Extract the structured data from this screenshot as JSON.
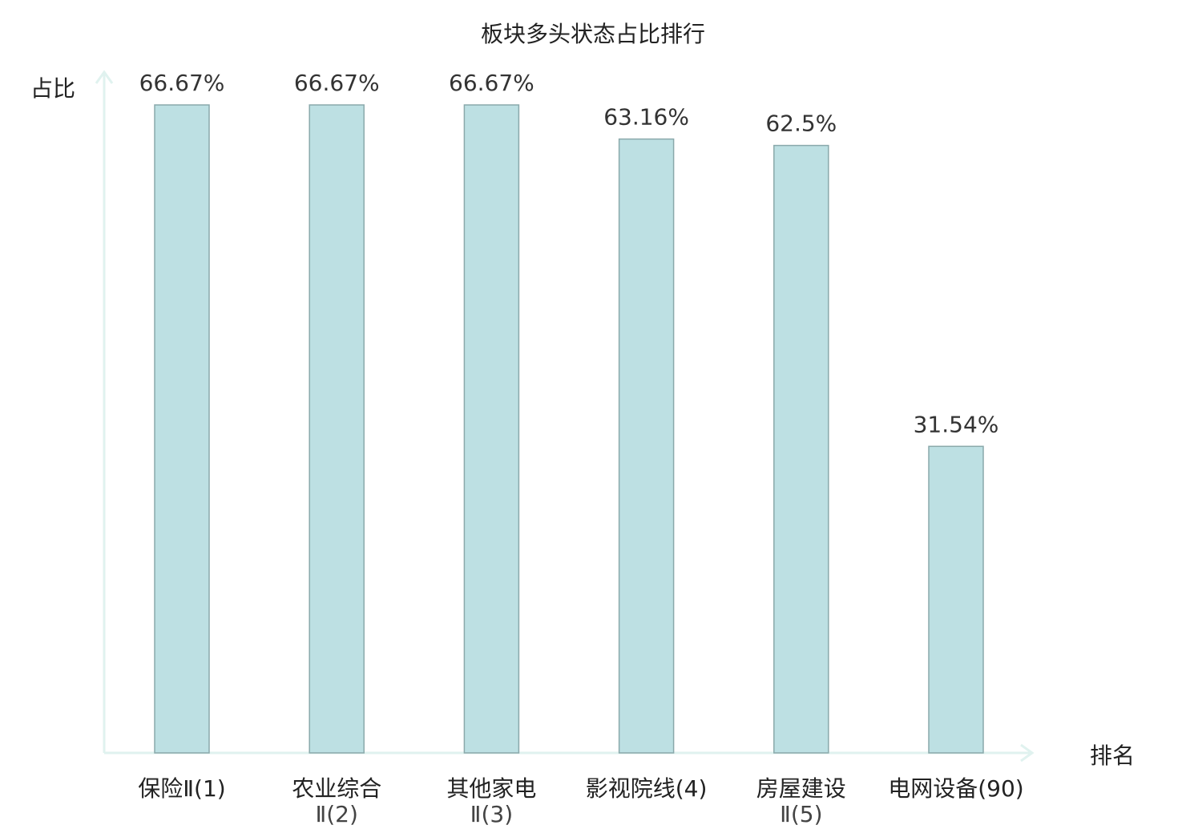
{
  "chart_data": {
    "type": "bar",
    "title": "板块多头状态占比排行",
    "ylabel": "占比",
    "xlabel": "排名",
    "ylim": [
      0,
      70
    ],
    "grid": false,
    "categories": [
      {
        "name": "保险Ⅱ",
        "rank": "(1)",
        "display": "保险Ⅱ(1)",
        "line1": "保险Ⅱ(1)",
        "line2": "",
        "highlight": false
      },
      {
        "name": "农业综合Ⅱ",
        "rank": "(2)",
        "display": "农业综合Ⅱ(2)",
        "line1": "农业综合",
        "line2": "Ⅱ(2)",
        "highlight": false
      },
      {
        "name": "其他家电Ⅱ",
        "rank": "(3)",
        "display": "其他家电Ⅱ(3)",
        "line1": "其他家电",
        "line2": "Ⅱ(3)",
        "highlight": false
      },
      {
        "name": "影视院线",
        "rank": "(4)",
        "display": "影视院线(4)",
        "line1": "影视院线(4)",
        "line2": "",
        "highlight": false
      },
      {
        "name": "房屋建设Ⅱ",
        "rank": "(5)",
        "display": "房屋建设Ⅱ(5)",
        "line1": "房屋建设",
        "line2": "Ⅱ(5)",
        "highlight": false
      },
      {
        "name": "电网设备",
        "rank": "(90)",
        "display": "电网设备(90)",
        "line1": "电网设备(90)",
        "line2": "",
        "highlight": true
      }
    ],
    "values": [
      66.67,
      66.67,
      66.67,
      63.16,
      62.5,
      31.54
    ],
    "value_labels": [
      "66.67%",
      "66.67%",
      "66.67%",
      "63.16%",
      "62.5%",
      "31.54%"
    ],
    "colors": {
      "bar_fill": "#bde0e3",
      "bar_stroke": "#8aa9ab",
      "axis": "#e0f2ef",
      "highlight_text": "#e41a1c",
      "normal_text": "#222222"
    }
  }
}
